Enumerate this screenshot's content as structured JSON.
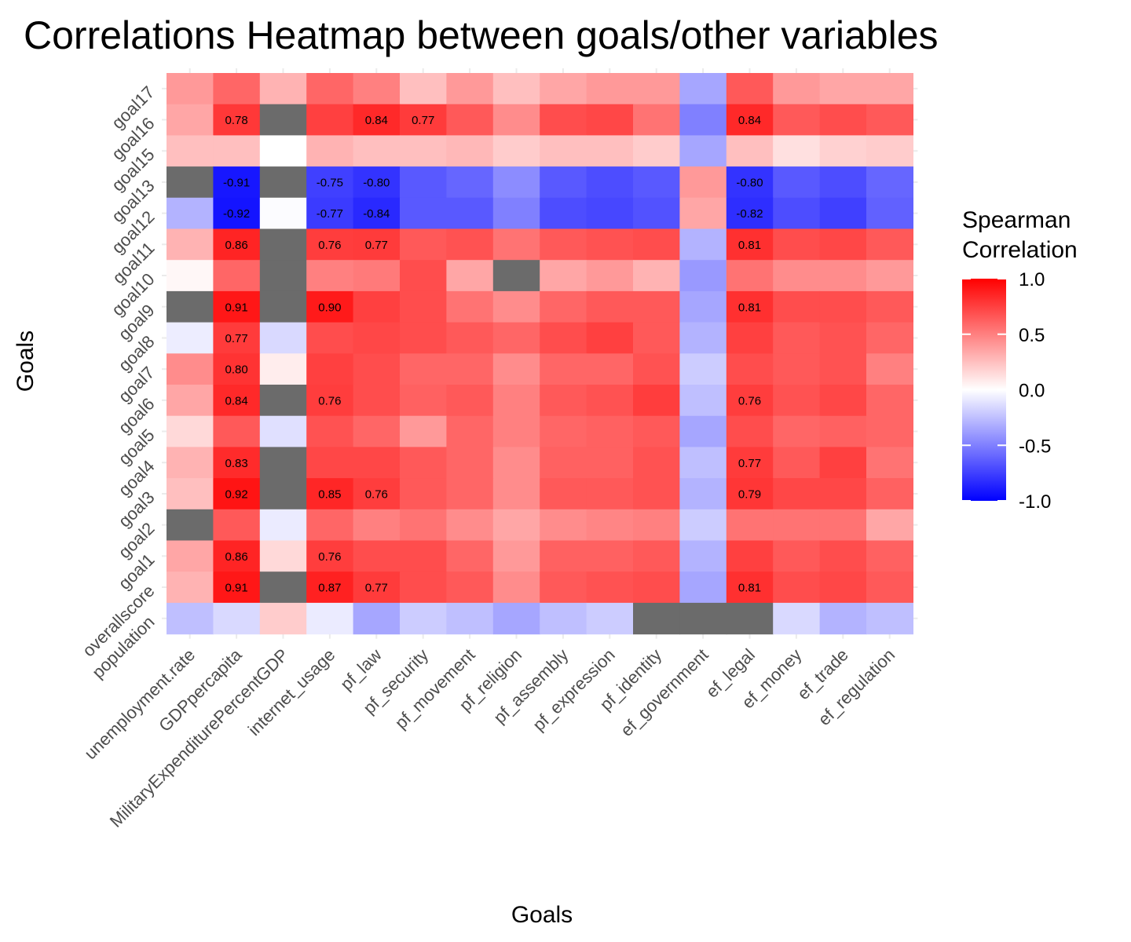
{
  "chart_data": {
    "type": "heatmap",
    "title": "Correlations Heatmap between goals/other variables",
    "xlabel": "Goals",
    "ylabel": "Goals",
    "grid": true,
    "legend_position": "right",
    "x": [
      "unemployment.rate",
      "GDPpercapita",
      "MilitaryExpenditurePercentGDP",
      "internet_usage",
      "pf_law",
      "pf_security",
      "pf_movement",
      "pf_religion",
      "pf_assembly",
      "pf_expression",
      "pf_identity",
      "ef_government",
      "ef_legal",
      "ef_money",
      "ef_trade",
      "ef_regulation"
    ],
    "y": [
      "goal17",
      "goal16",
      "goal15",
      "goal13",
      "goal12",
      "goal11",
      "goal10",
      "goal9",
      "goal8",
      "goal7",
      "goal6",
      "goal5",
      "goal4",
      "goal3",
      "goal2",
      "goal1",
      "overallscore",
      "population"
    ],
    "values": [
      [
        0.4,
        0.6,
        0.3,
        0.6,
        0.5,
        0.25,
        0.4,
        0.25,
        0.35,
        0.4,
        0.4,
        -0.35,
        0.65,
        0.4,
        0.35,
        0.35
      ],
      [
        0.35,
        0.78,
        null,
        0.75,
        0.84,
        0.77,
        0.65,
        0.45,
        0.7,
        0.72,
        0.55,
        -0.5,
        0.84,
        0.65,
        0.7,
        0.65
      ],
      [
        0.25,
        0.25,
        0.0,
        0.3,
        0.25,
        0.25,
        0.28,
        0.2,
        0.25,
        0.25,
        0.2,
        -0.35,
        0.25,
        0.12,
        0.18,
        0.2
      ],
      [
        null,
        -0.91,
        null,
        -0.75,
        -0.8,
        -0.65,
        -0.6,
        -0.45,
        -0.65,
        -0.7,
        -0.65,
        0.4,
        -0.8,
        -0.65,
        -0.7,
        -0.6
      ],
      [
        -0.3,
        -0.92,
        -0.01,
        -0.77,
        -0.84,
        -0.65,
        -0.65,
        -0.5,
        -0.7,
        -0.72,
        -0.68,
        0.35,
        -0.82,
        -0.7,
        -0.75,
        -0.62
      ],
      [
        0.3,
        0.86,
        null,
        0.76,
        0.77,
        0.65,
        0.68,
        0.55,
        0.65,
        0.68,
        0.7,
        -0.3,
        0.81,
        0.7,
        0.72,
        0.65
      ],
      [
        0.03,
        0.6,
        null,
        0.5,
        0.52,
        0.7,
        0.35,
        null,
        0.35,
        0.4,
        0.3,
        -0.4,
        0.55,
        0.45,
        0.45,
        0.4
      ],
      [
        null,
        0.91,
        null,
        0.9,
        0.75,
        0.7,
        0.55,
        0.45,
        0.6,
        0.65,
        0.65,
        -0.35,
        0.81,
        0.7,
        0.7,
        0.65
      ],
      [
        -0.07,
        0.77,
        -0.15,
        0.7,
        0.72,
        0.7,
        0.65,
        0.6,
        0.7,
        0.75,
        0.65,
        -0.3,
        0.75,
        0.65,
        0.68,
        0.6
      ],
      [
        0.45,
        0.8,
        0.07,
        0.75,
        0.7,
        0.6,
        0.6,
        0.45,
        0.6,
        0.6,
        0.68,
        -0.2,
        0.7,
        0.65,
        0.68,
        0.5
      ],
      [
        0.35,
        0.84,
        null,
        0.76,
        0.7,
        0.62,
        0.65,
        0.5,
        0.65,
        0.68,
        0.76,
        -0.25,
        0.76,
        0.68,
        0.72,
        0.6
      ],
      [
        0.15,
        0.65,
        -0.12,
        0.68,
        0.6,
        0.4,
        0.6,
        0.5,
        0.6,
        0.62,
        0.65,
        -0.35,
        0.7,
        0.6,
        0.62,
        0.6
      ],
      [
        0.3,
        0.83,
        null,
        0.72,
        0.72,
        0.65,
        0.6,
        0.45,
        0.62,
        0.62,
        0.68,
        -0.25,
        0.77,
        0.65,
        0.75,
        0.55
      ],
      [
        0.25,
        0.92,
        null,
        0.85,
        0.76,
        0.65,
        0.6,
        0.45,
        0.65,
        0.65,
        0.68,
        -0.3,
        0.79,
        0.72,
        0.72,
        0.62
      ],
      [
        null,
        0.65,
        -0.08,
        0.6,
        0.5,
        0.55,
        0.45,
        0.35,
        0.45,
        0.48,
        0.5,
        -0.2,
        0.55,
        0.55,
        0.55,
        0.35
      ],
      [
        0.35,
        0.86,
        0.15,
        0.76,
        0.7,
        0.7,
        0.6,
        0.4,
        0.62,
        0.62,
        0.65,
        -0.3,
        0.75,
        0.65,
        0.7,
        0.62
      ],
      [
        0.3,
        0.91,
        null,
        0.87,
        0.77,
        0.7,
        0.65,
        0.45,
        0.65,
        0.68,
        0.7,
        -0.35,
        0.81,
        0.7,
        0.72,
        0.65
      ],
      [
        -0.25,
        -0.15,
        0.2,
        -0.08,
        -0.35,
        -0.2,
        -0.25,
        -0.35,
        -0.25,
        -0.2,
        null,
        null,
        null,
        -0.15,
        -0.3,
        -0.25
      ]
    ],
    "labeled_cells": {
      "goal16": {
        "GDPpercapita": "0.78",
        "pf_law": "0.84",
        "pf_security": "0.77",
        "ef_legal": "0.84"
      },
      "goal13": {
        "GDPpercapita": "-0.91",
        "internet_usage": "-0.75",
        "pf_law": "-0.80",
        "ef_legal": "-0.80"
      },
      "goal12": {
        "GDPpercapita": "-0.92",
        "internet_usage": "-0.77",
        "pf_law": "-0.84",
        "ef_legal": "-0.82"
      },
      "goal11": {
        "GDPpercapita": "0.86",
        "internet_usage": "0.76",
        "pf_law": "0.77",
        "ef_legal": "0.81"
      },
      "goal9": {
        "GDPpercapita": "0.91",
        "internet_usage": "0.90",
        "ef_legal": "0.81"
      },
      "goal8": {
        "GDPpercapita": "0.77"
      },
      "goal7": {
        "GDPpercapita": "0.80"
      },
      "goal6": {
        "GDPpercapita": "0.84",
        "internet_usage": "0.76",
        "ef_legal": "0.76"
      },
      "goal4": {
        "GDPpercapita": "0.83",
        "ef_legal": "0.77"
      },
      "goal3": {
        "GDPpercapita": "0.92",
        "internet_usage": "0.85",
        "pf_law": "0.76",
        "ef_legal": "0.79"
      },
      "goal1": {
        "GDPpercapita": "0.86",
        "internet_usage": "0.76"
      },
      "overallscore": {
        "GDPpercapita": "0.91",
        "internet_usage": "0.87",
        "pf_law": "0.77",
        "ef_legal": "0.81"
      }
    },
    "missing_color": "#6b6b6b",
    "scale": {
      "low": "#0000ff",
      "mid": "#ffffff",
      "high": "#ff0000",
      "limits": [
        -1,
        1
      ]
    },
    "legend": {
      "title_lines": [
        "Spearman",
        "Correlation"
      ],
      "ticks": [
        1.0,
        0.5,
        0.0,
        -0.5,
        -1.0
      ],
      "tick_labels": [
        "1.0",
        "0.5",
        "0.0",
        "-0.5",
        "-1.0"
      ]
    }
  }
}
